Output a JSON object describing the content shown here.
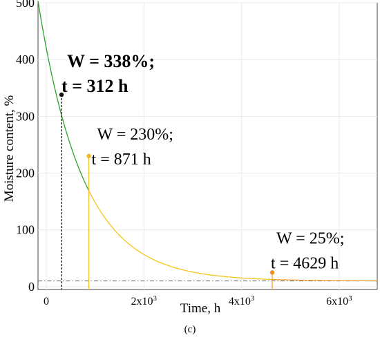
{
  "chart_data": {
    "type": "line",
    "xlabel": "Time, h",
    "ylabel": "Moisture content, %",
    "panel_label": "(c)",
    "xlim": [
      -170,
      6780
    ],
    "ylim": [
      -5,
      500
    ],
    "grid": true,
    "x_ticks": [
      {
        "value": 0,
        "label": "0"
      },
      {
        "value": 2000,
        "label": "2x10",
        "exp": "3"
      },
      {
        "value": 4000,
        "label": "4x10",
        "exp": "3"
      },
      {
        "value": 6000,
        "label": "6x10",
        "exp": "3"
      }
    ],
    "y_ticks": [
      0,
      100,
      200,
      300,
      400,
      500
    ],
    "model": {
      "w_asymptote": 10,
      "w0": 410,
      "tau_h": 920
    },
    "series": [
      {
        "segment": "initial",
        "color": "#2ca02c",
        "x_range": [
          -170,
          871
        ]
      },
      {
        "segment": "middle",
        "color": "#f5c518",
        "x_range": [
          871,
          4629
        ]
      },
      {
        "segment": "late",
        "color": "#f0a030",
        "x_range": [
          4629,
          6780
        ]
      }
    ],
    "reference_line": {
      "y": 10,
      "color": "#666666",
      "style": "dash-dot"
    },
    "points": [
      {
        "x": 312,
        "y": 338,
        "color": "#111111",
        "line_color": "#111111",
        "dashed": true,
        "label_w": "W = 338%;",
        "label_t": "t = 312 h",
        "bold": true
      },
      {
        "x": 871,
        "y": 230,
        "color": "#f2b824",
        "line_color": "#f2c030",
        "dashed": false,
        "label_w": "W = 230%;",
        "label_t": "t = 871 h",
        "bold": false
      },
      {
        "x": 4629,
        "y": 25,
        "color": "#f08c28",
        "line_color": "#f0a030",
        "dashed": false,
        "label_w": "W = 25%;",
        "label_t": "t = 4629 h",
        "bold": false
      }
    ]
  }
}
